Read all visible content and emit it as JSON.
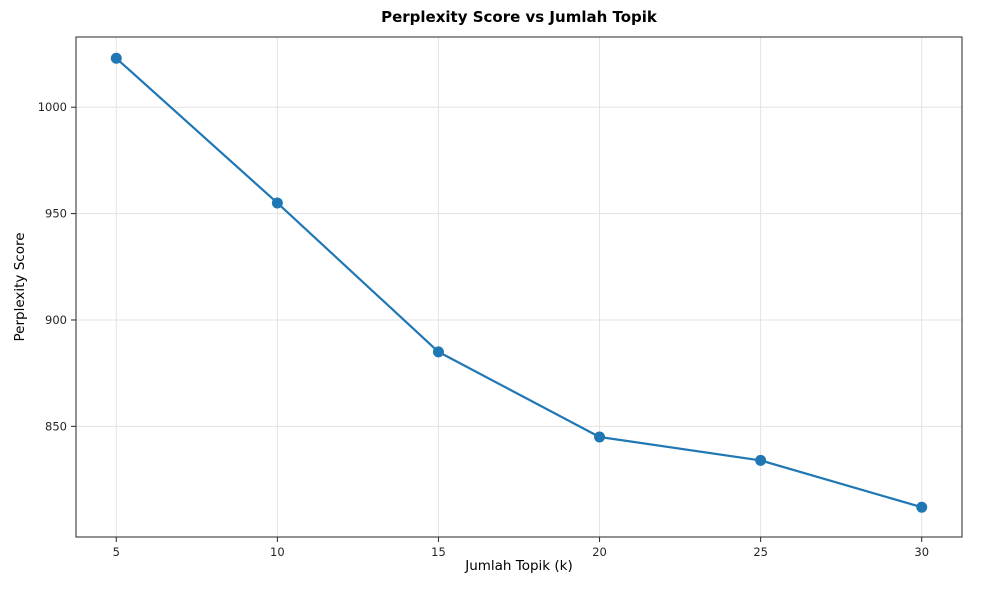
{
  "chart_data": {
    "type": "line",
    "title": "Perplexity Score vs Jumlah Topik",
    "xlabel": "Jumlah Topik (k)",
    "ylabel": "Perplexity Score",
    "x": [
      5,
      10,
      15,
      20,
      25,
      30
    ],
    "series": [
      {
        "name": "Perplexity Score",
        "values": [
          1023,
          955,
          885,
          845,
          834,
          812
        ]
      }
    ],
    "xticks": [
      5,
      10,
      15,
      20,
      25,
      30
    ],
    "yticks": [
      850,
      900,
      950,
      1000
    ],
    "xlim": [
      3.75,
      31.25
    ],
    "ylim": [
      798,
      1033
    ],
    "line_color": "#1f77b4",
    "marker": "circle",
    "marker_radius": 5.5,
    "grid": true,
    "grid_color": "#e3e3e3",
    "spine_color": "#262626",
    "legend_position": "none"
  }
}
